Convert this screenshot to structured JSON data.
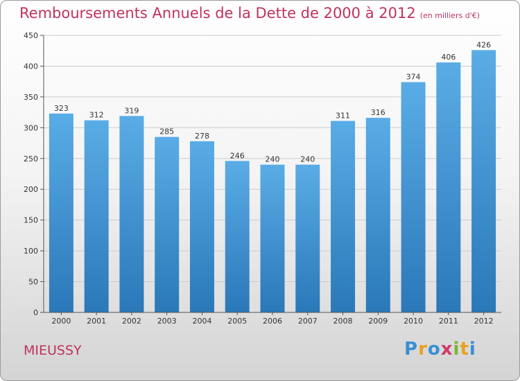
{
  "header": {
    "title": "Remboursements Annuels de la Dette de 2000 à 2012",
    "unit": "(en milliers d'€)"
  },
  "footer": {
    "town": "MIEUSSY",
    "logo": "Proxiti"
  },
  "colors": {
    "title": "#c0325c",
    "bar_top": "#5aace6",
    "bar_bottom": "#2a78b8",
    "grid": "#cccccc"
  },
  "chart_data": {
    "type": "bar",
    "title": "Remboursements Annuels de la Dette de 2000 à 2012",
    "categories": [
      "2000",
      "2001",
      "2002",
      "2003",
      "2004",
      "2005",
      "2006",
      "2007",
      "2008",
      "2009",
      "2010",
      "2011",
      "2012"
    ],
    "values": [
      323,
      312,
      319,
      285,
      278,
      246,
      240,
      240,
      311,
      316,
      374,
      406,
      426
    ],
    "ylim": [
      0,
      450
    ],
    "yticks": [
      0,
      50,
      100,
      150,
      200,
      250,
      300,
      350,
      400,
      450
    ],
    "grid": true,
    "legend": "none"
  }
}
